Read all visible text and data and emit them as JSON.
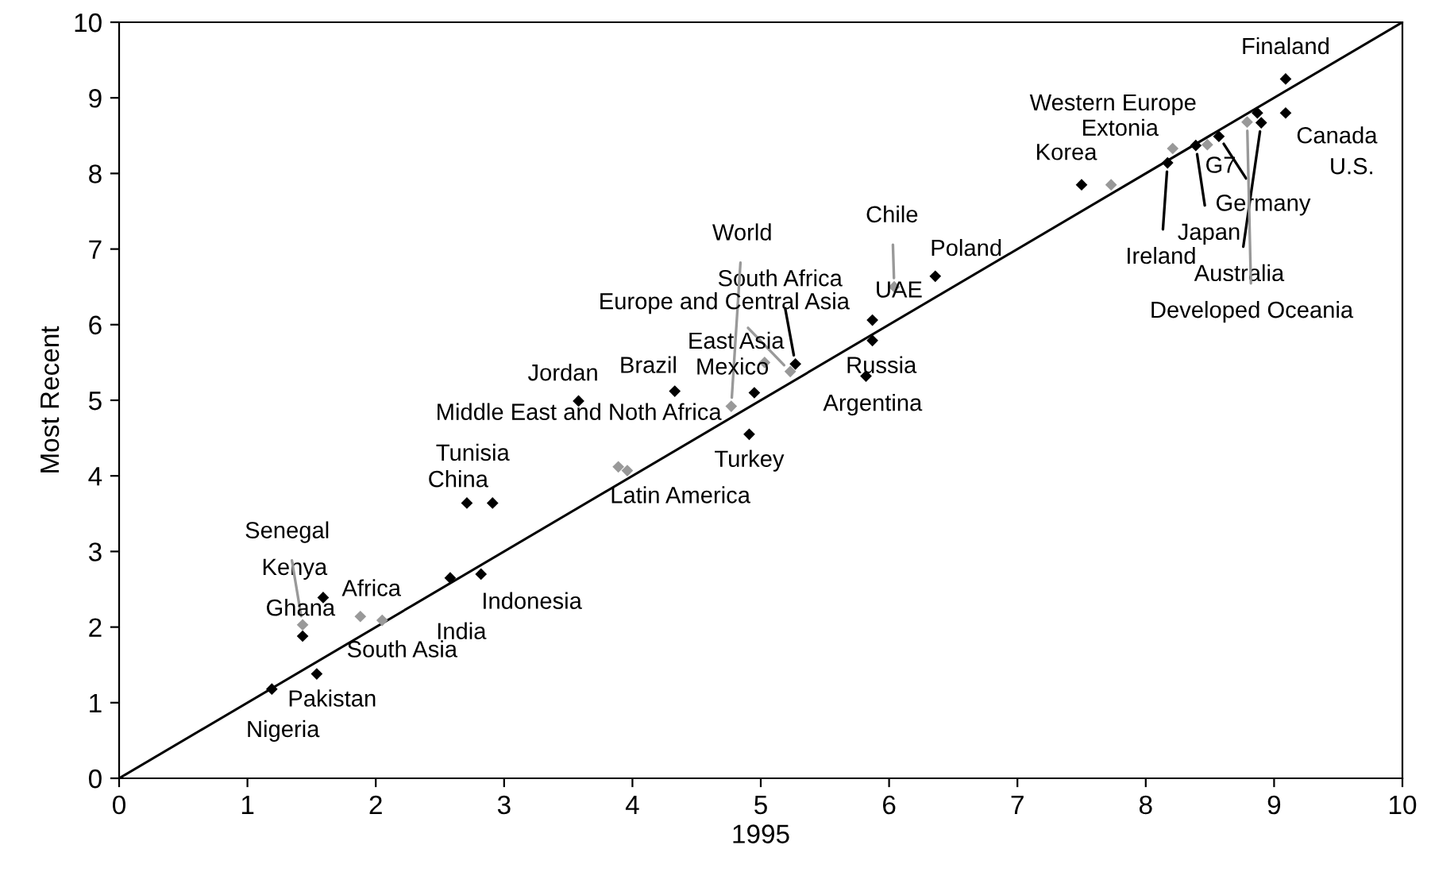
{
  "chart_data": {
    "type": "scatter",
    "xlabel": "1995",
    "ylabel": "Most Recent",
    "xlim": [
      0,
      10
    ],
    "ylim": [
      0,
      10
    ],
    "xticks": [
      0,
      1,
      2,
      3,
      4,
      5,
      6,
      7,
      8,
      9,
      10
    ],
    "yticks": [
      0,
      1,
      2,
      3,
      4,
      5,
      6,
      7,
      8,
      9,
      10
    ],
    "grid": false,
    "legend": false,
    "marker": "diamond",
    "series": [
      {
        "color": "#000000",
        "x": [
          9.09,
          9.09,
          8.87,
          7.5,
          8.39,
          8.57,
          8.17,
          8.9,
          6.36,
          5.87,
          5.87,
          5.82,
          5.27,
          4.95,
          4.33,
          3.58,
          4.91,
          2.91,
          2.71,
          2.82,
          2.58,
          1.59,
          1.43,
          1.54,
          1.19
        ],
        "values": [
          9.25,
          8.8,
          8.8,
          7.85,
          8.37,
          8.49,
          8.14,
          8.67,
          6.64,
          6.06,
          5.79,
          5.32,
          5.48,
          5.1,
          5.12,
          4.99,
          4.55,
          3.64,
          3.64,
          2.7,
          2.65,
          2.39,
          1.88,
          1.38,
          1.18
        ]
      },
      {
        "color": "#999999",
        "x": [
          8.21,
          7.73,
          8.48,
          8.79,
          6.04,
          4.77,
          5.23,
          5.03,
          3.89,
          3.96,
          1.88,
          2.05,
          1.43
        ],
        "values": [
          8.33,
          7.85,
          8.38,
          8.68,
          6.5,
          4.92,
          5.38,
          5.5,
          4.12,
          4.07,
          2.14,
          2.09,
          2.03
        ]
      },
      {
        "type": "line",
        "color": "#000000",
        "x": [
          0,
          10
        ],
        "values": [
          0,
          10
        ],
        "marker": "none"
      }
    ],
    "annotations": [
      {
        "text": "Finaland",
        "x": 9.09,
        "y": 9.25
      },
      {
        "text": "U.S.",
        "x": 9.09,
        "y": 8.8
      },
      {
        "text": "Canada",
        "x": 8.87,
        "y": 8.8
      },
      {
        "text": "Western Europe",
        "x": 8.21,
        "y": 8.33
      },
      {
        "text": "Extonia",
        "x": 7.73,
        "y": 7.85
      },
      {
        "text": "Korea",
        "x": 7.5,
        "y": 7.85
      },
      {
        "text": "G7",
        "x": 8.48,
        "y": 8.38
      },
      {
        "text": "Germany",
        "x": 8.57,
        "y": 8.49
      },
      {
        "text": "Japan",
        "x": 8.39,
        "y": 8.37
      },
      {
        "text": "Ireland",
        "x": 8.17,
        "y": 8.14
      },
      {
        "text": "Australia",
        "x": 8.9,
        "y": 8.67
      },
      {
        "text": "Developed Oceania",
        "x": 8.79,
        "y": 8.68
      },
      {
        "text": "Chile",
        "x": 6.04,
        "y": 6.5
      },
      {
        "text": "Poland",
        "x": 6.36,
        "y": 6.64
      },
      {
        "text": "UAE",
        "x": 5.87,
        "y": 6.06
      },
      {
        "text": "Russia",
        "x": 5.87,
        "y": 5.79
      },
      {
        "text": "Argentina",
        "x": 5.82,
        "y": 5.32
      },
      {
        "text": "South Africa",
        "x": 5.27,
        "y": 5.48
      },
      {
        "text": "World",
        "x": 4.77,
        "y": 4.92
      },
      {
        "text": "Europe and Central Asia",
        "x": 5.23,
        "y": 5.38
      },
      {
        "text": "East Asia",
        "x": 5.03,
        "y": 5.5
      },
      {
        "text": "Mexico",
        "x": 4.95,
        "y": 5.1
      },
      {
        "text": "Brazil",
        "x": 4.33,
        "y": 5.12
      },
      {
        "text": "Jordan",
        "x": 3.58,
        "y": 4.99
      },
      {
        "text": "Turkey",
        "x": 4.91,
        "y": 4.55
      },
      {
        "text": "Middle East and Noth Africa",
        "x": 3.89,
        "y": 4.12
      },
      {
        "text": "Latin America",
        "x": 3.96,
        "y": 4.07
      },
      {
        "text": "Tunisia",
        "x": 2.91,
        "y": 3.64
      },
      {
        "text": "China",
        "x": 2.71,
        "y": 3.64
      },
      {
        "text": "Indonesia",
        "x": 2.82,
        "y": 2.7
      },
      {
        "text": "India",
        "x": 2.58,
        "y": 2.65
      },
      {
        "text": "Africa",
        "x": 1.88,
        "y": 2.14
      },
      {
        "text": "South Asia",
        "x": 2.05,
        "y": 2.09
      },
      {
        "text": "Kenya",
        "x": 1.59,
        "y": 2.39
      },
      {
        "text": "Senegal",
        "x": 1.43,
        "y": 2.03
      },
      {
        "text": "Ghana",
        "x": 1.43,
        "y": 1.88
      },
      {
        "text": "Pakistan",
        "x": 1.54,
        "y": 1.38
      },
      {
        "text": "Nigeria",
        "x": 1.19,
        "y": 1.18
      }
    ]
  }
}
